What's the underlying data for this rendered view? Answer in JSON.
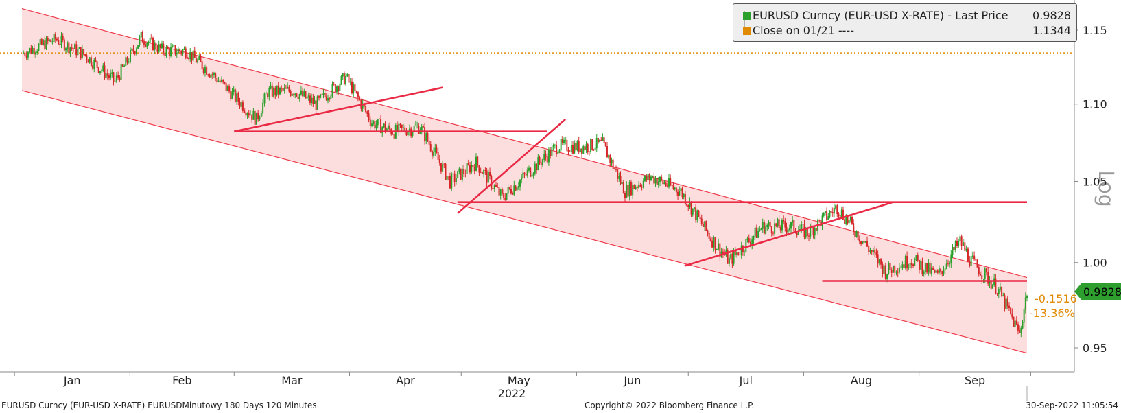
{
  "chart_data": {
    "type": "line",
    "title": "",
    "ylabel": "Log",
    "log_scale": true,
    "ylim": [
      0.935,
      1.165
    ],
    "year_label": "2022",
    "x_months": [
      "Jan",
      "Feb",
      "Mar",
      "Apr",
      "May",
      "Jun",
      "Jul",
      "Aug",
      "Sep"
    ],
    "y_ticks": [
      "0.95",
      "1.00",
      "1.05",
      "1.10",
      "1.15"
    ],
    "series": [
      {
        "name": "EURUSD Curncy (EUR-USD X-RATE) - Last Price",
        "color": "#2ca02c",
        "down_color": "#d62728",
        "last_value": 0.9828,
        "x": [
          "2022-01-03",
          "2022-01-12",
          "2022-01-20",
          "2022-01-28",
          "2022-02-04",
          "2022-02-10",
          "2022-02-16",
          "2022-02-24",
          "2022-03-07",
          "2022-03-10",
          "2022-03-17",
          "2022-03-23",
          "2022-03-31",
          "2022-04-07",
          "2022-04-13",
          "2022-04-20",
          "2022-04-28",
          "2022-05-05",
          "2022-05-12",
          "2022-05-20",
          "2022-05-27",
          "2022-06-02",
          "2022-06-08",
          "2022-06-14",
          "2022-06-21",
          "2022-06-29",
          "2022-07-07",
          "2022-07-12",
          "2022-07-21",
          "2022-07-29",
          "2022-08-02",
          "2022-08-10",
          "2022-08-16",
          "2022-08-23",
          "2022-08-30",
          "2022-09-06",
          "2022-09-12",
          "2022-09-15",
          "2022-09-22",
          "2022-09-28",
          "2022-09-30"
        ],
        "values": [
          1.134,
          1.144,
          1.133,
          1.115,
          1.145,
          1.136,
          1.136,
          1.118,
          1.09,
          1.108,
          1.109,
          1.1,
          1.118,
          1.088,
          1.082,
          1.085,
          1.05,
          1.062,
          1.04,
          1.058,
          1.073,
          1.072,
          1.074,
          1.044,
          1.053,
          1.044,
          1.015,
          1.001,
          1.022,
          1.022,
          1.018,
          1.034,
          1.016,
          0.995,
          1.002,
          0.992,
          1.013,
          1.001,
          0.985,
          0.958,
          0.9828
        ]
      },
      {
        "name": "Close on 01/21",
        "color": "#e08a00",
        "line_style": "dotted",
        "value": 1.1344
      }
    ],
    "annotations": {
      "change": "-0.1516",
      "change_pct": "-13.36%",
      "channel": {
        "color": "#f4a3a3",
        "upper": [
          {
            "x": "2022-01-03",
            "y": 1.165
          },
          {
            "x": "2022-09-30",
            "y": 0.991
          }
        ],
        "lower": [
          {
            "x": "2022-01-03",
            "y": 1.109
          },
          {
            "x": "2022-09-30",
            "y": 0.947
          }
        ]
      },
      "support_lines": [
        {
          "x1": "2022-03-01",
          "x2": "2022-05-24",
          "y": 1.082
        },
        {
          "x1": "2022-04-30",
          "x2": "2022-09-30",
          "y": 1.037
        },
        {
          "x1": "2022-08-06",
          "x2": "2022-09-30",
          "y": 0.989
        }
      ],
      "trend_lines": [
        {
          "x1": "2022-03-01",
          "y1": 1.082,
          "x2": "2022-04-26",
          "y2": 1.111
        },
        {
          "x1": "2022-04-30",
          "y1": 1.03,
          "x2": "2022-05-29",
          "y2": 1.09
        },
        {
          "x1": "2022-06-30",
          "y1": 0.998,
          "x2": "2022-08-25",
          "y2": 1.037
        }
      ]
    }
  },
  "legend": {
    "row1_label": "EURUSD Curncy (EUR-USD X-RATE) - Last Price",
    "row1_value": "0.9828",
    "row2_label": "Close on 01/21 ----",
    "row2_value": "1.1344"
  },
  "footer": {
    "left": "EURUSD Curncy (EUR-USD X-RATE) EURUSDMinutowy 180 Days 120 Minutes",
    "center": "Copyright© 2022 Bloomberg Finance L.P.",
    "right": "30-Sep-2022 11:05:54"
  }
}
